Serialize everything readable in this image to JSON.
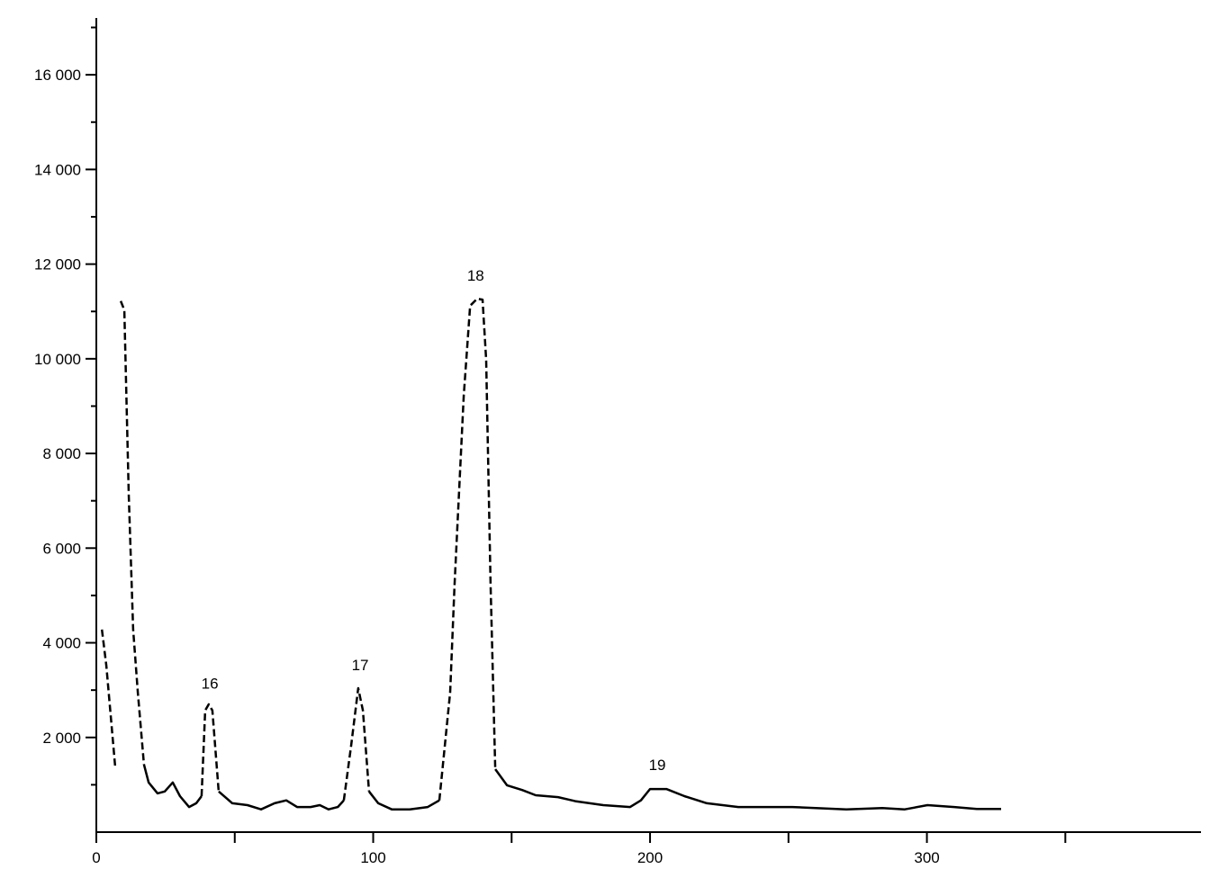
{
  "chart_data": {
    "type": "line",
    "x": [
      2,
      3.6,
      6.8,
      7.8,
      8.8,
      10.1,
      11.7,
      13.3,
      15,
      17.2,
      18.9,
      22.1,
      24.7,
      27.6,
      30.2,
      33.5,
      36.1,
      38,
      39.3,
      40.6,
      41.9,
      44.2,
      49.1,
      54.6,
      59.5,
      64.4,
      68.6,
      72.5,
      77.4,
      80.7,
      83.9,
      87.2,
      89.4,
      92,
      94.6,
      96.3,
      98.5,
      101.8,
      106.7,
      113.2,
      119.7,
      123.9,
      127.8,
      129.4,
      132.7,
      135,
      137.6,
      139.5,
      140.8,
      142.4,
      144.1,
      148.3,
      153.8,
      158.7,
      166.8,
      173.3,
      183.1,
      192.8,
      196.7,
      200,
      205.9,
      212.4,
      220.5,
      231.9,
      251.4,
      270.9,
      283.9,
      292,
      300.2,
      309.9,
      318,
      326.8
    ],
    "series": [
      {
        "color": "#000000",
        "dash": "dashed",
        "values": [
          4280,
          3520,
          1390,
          null,
          11220,
          11030,
          7130,
          4280,
          2950,
          1430,
          null,
          null,
          null,
          null,
          null,
          null,
          null,
          760,
          2570,
          2700,
          2570,
          860,
          null,
          null,
          null,
          null,
          null,
          null,
          null,
          null,
          null,
          null,
          670,
          1810,
          3040,
          2570,
          860,
          null,
          null,
          null,
          null,
          670,
          2950,
          5230,
          9220,
          11120,
          11270,
          11250,
          9980,
          5230,
          1330,
          null,
          null,
          null,
          null,
          null,
          null,
          null,
          null,
          null,
          null,
          null,
          null,
          null,
          null,
          null,
          null,
          null,
          null,
          null,
          null,
          null
        ]
      },
      {
        "color": "#000000",
        "dash": "solid",
        "values": [
          null,
          null,
          null,
          null,
          null,
          null,
          null,
          null,
          null,
          1430,
          1050,
          820,
          860,
          1050,
          760,
          530,
          610,
          760,
          null,
          null,
          null,
          860,
          610,
          570,
          480,
          610,
          670,
          530,
          530,
          570,
          480,
          530,
          670,
          null,
          null,
          null,
          860,
          610,
          480,
          480,
          530,
          670,
          null,
          null,
          null,
          null,
          null,
          null,
          null,
          null,
          1330,
          990,
          890,
          780,
          740,
          650,
          570,
          530,
          670,
          910,
          910,
          760,
          610,
          530,
          530,
          480,
          510,
          480,
          570,
          530,
          490,
          490
        ]
      }
    ],
    "xlim": [
      0,
      399
    ],
    "xticks": [
      0,
      100,
      200,
      300
    ],
    "xminorticks": [
      50,
      150,
      250,
      350
    ],
    "ylim": [
      0,
      17200
    ],
    "yticks": [
      {
        "value": 2000,
        "label": "2 000"
      },
      {
        "value": 4000,
        "label": "4 000"
      },
      {
        "value": 6000,
        "label": "6 000"
      },
      {
        "value": 8000,
        "label": "8 000"
      },
      {
        "value": 10000,
        "label": "10 000"
      },
      {
        "value": 12000,
        "label": "12 000"
      },
      {
        "value": 14000,
        "label": "14 000"
      },
      {
        "value": 16000,
        "label": "16 000"
      }
    ],
    "yminorticks": [
      1000,
      3000,
      5000,
      7000,
      9000,
      11000,
      13000,
      15000,
      17000
    ],
    "annotations": [
      {
        "text": "16",
        "x": 41,
        "y": 3030
      },
      {
        "text": "17",
        "x": 95.3,
        "y": 3420
      },
      {
        "text": "18",
        "x": 137,
        "y": 11650
      },
      {
        "text": "19",
        "x": 202.6,
        "y": 1310
      }
    ]
  }
}
